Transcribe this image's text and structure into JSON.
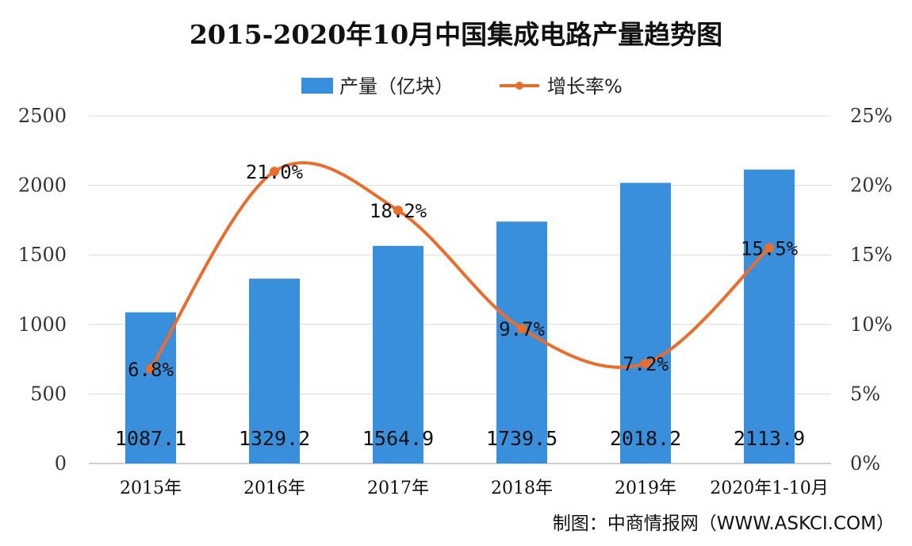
{
  "chart_data": {
    "type": "bar+line",
    "title": "2015-2020年10月中国集成电路产量趋势图",
    "categories": [
      "2015年",
      "2016年",
      "2017年",
      "2018年",
      "2019年",
      "2020年1-10月"
    ],
    "series": [
      {
        "name": "产量（亿块）",
        "type": "bar",
        "axis": "left",
        "color": "#3a8fdd",
        "values": [
          1087.1,
          1329.2,
          1564.9,
          1739.5,
          2018.2,
          2113.9
        ],
        "labels": [
          "1087.1",
          "1329.2",
          "1564.9",
          "1739.5",
          "2018.2",
          "2113.9"
        ]
      },
      {
        "name": "增长率%",
        "type": "line",
        "axis": "right",
        "color": "#ea6d2b",
        "smooth": true,
        "values": [
          6.8,
          21.0,
          18.2,
          9.7,
          7.2,
          15.5
        ],
        "labels": [
          "6.8%",
          "21.0%",
          "18.2%",
          "9.7%",
          "7.2%",
          "15.5%"
        ]
      }
    ],
    "y_left": {
      "range": [
        0,
        2500
      ],
      "ticks": [
        "0",
        "500",
        "1000",
        "1500",
        "2000",
        "2500"
      ]
    },
    "y_right": {
      "range": [
        0,
        25
      ],
      "ticks": [
        "0%",
        "5%",
        "10%",
        "15%",
        "20%",
        "25%"
      ]
    },
    "legend_position": "top-center",
    "grid": true
  },
  "source_note": "制图：中商情报网（WWW.ASKCI.COM）"
}
